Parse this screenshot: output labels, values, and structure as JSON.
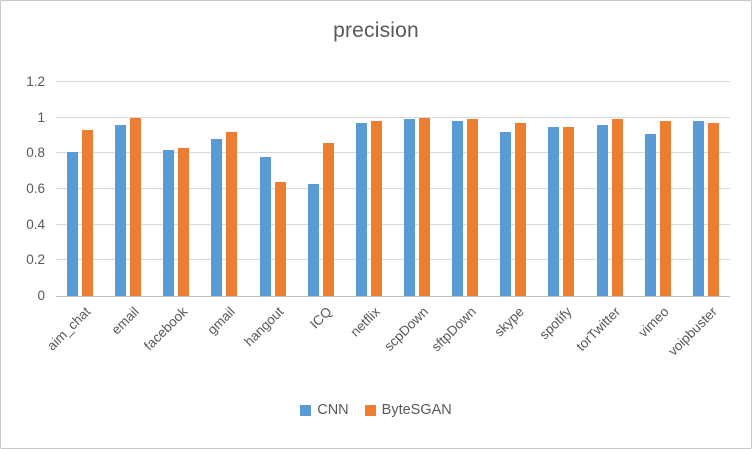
{
  "title": "precision",
  "chart_data": {
    "type": "bar",
    "title": "precision",
    "categories": [
      "aim_chat",
      "email",
      "facebook",
      "gmail",
      "hangout",
      "ICQ",
      "netflix",
      "scpDown",
      "sftpDown",
      "skype",
      "spotify",
      "torTwitter",
      "vimeo",
      "voipbuster"
    ],
    "series": [
      {
        "name": "CNN",
        "color": "#5B9BD5",
        "values": [
          0.81,
          0.96,
          0.82,
          0.88,
          0.78,
          0.63,
          0.97,
          0.99,
          0.98,
          0.92,
          0.95,
          0.96,
          0.91,
          0.98
        ]
      },
      {
        "name": "ByteSGAN",
        "color": "#ED7D31",
        "values": [
          0.93,
          1.0,
          0.83,
          0.92,
          0.64,
          0.86,
          0.98,
          1.0,
          0.99,
          0.97,
          0.95,
          0.99,
          0.98,
          0.97
        ]
      }
    ],
    "ylim": [
      0,
      1.2
    ],
    "yticks": [
      0,
      0.2,
      0.4,
      0.6,
      0.8,
      1,
      1.2
    ],
    "grid": true,
    "legend_position": "bottom"
  },
  "colors": {
    "axis_text": "#595959",
    "title_text": "#595959",
    "gridline": "#D9D9D9",
    "axis_line": "#BFBFBF",
    "background": "#FFFFFF",
    "border": "#C8C8C8"
  }
}
